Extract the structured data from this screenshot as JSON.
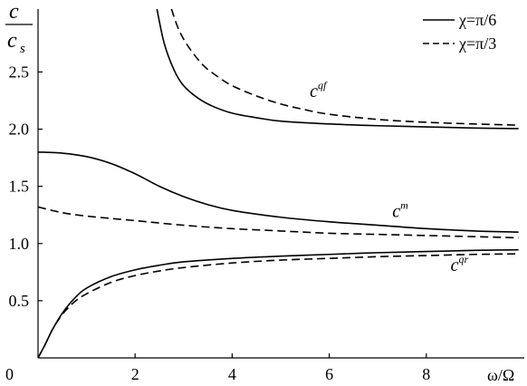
{
  "chart_data": {
    "type": "line",
    "title": "",
    "xlabel": "ω/Ω",
    "ylabel": {
      "numerator": "c",
      "denominator": "c",
      "denominator_subscript": "s"
    },
    "xlim": [
      0,
      10
    ],
    "ylim": [
      0,
      3.05
    ],
    "x_ticks": [
      "2",
      "4",
      "6",
      "8"
    ],
    "y_ticks": [
      "0.5",
      "1.0",
      "1.5",
      "2.0",
      "2.5"
    ],
    "origin_label": "0",
    "legend_position": "top-right",
    "grid": false,
    "series": [
      {
        "name": "χ=π/6",
        "style": "solid",
        "branch": "upper",
        "points": [
          [
            2.45,
            3.05
          ],
          [
            2.6,
            2.75
          ],
          [
            2.8,
            2.52
          ],
          [
            3.0,
            2.38
          ],
          [
            3.3,
            2.27
          ],
          [
            3.6,
            2.2
          ],
          [
            4.0,
            2.14
          ],
          [
            4.5,
            2.1
          ],
          [
            5,
            2.07
          ],
          [
            6,
            2.045
          ],
          [
            7,
            2.03
          ],
          [
            8,
            2.02
          ],
          [
            9,
            2.01
          ],
          [
            9.9,
            2.005
          ]
        ]
      },
      {
        "name": "χ=π/3",
        "style": "dashed",
        "branch": "upper",
        "points": [
          [
            2.75,
            3.05
          ],
          [
            2.9,
            2.87
          ],
          [
            3.1,
            2.72
          ],
          [
            3.4,
            2.56
          ],
          [
            3.7,
            2.46
          ],
          [
            4.0,
            2.38
          ],
          [
            4.5,
            2.29
          ],
          [
            5,
            2.22
          ],
          [
            5.5,
            2.17
          ],
          [
            6,
            2.13
          ],
          [
            7,
            2.085
          ],
          [
            8,
            2.06
          ],
          [
            9,
            2.045
          ],
          [
            9.9,
            2.035
          ]
        ]
      },
      {
        "name": "χ=π/6",
        "style": "solid",
        "branch": "middle",
        "points": [
          [
            0,
            1.8
          ],
          [
            0.5,
            1.79
          ],
          [
            1,
            1.76
          ],
          [
            1.5,
            1.7
          ],
          [
            2,
            1.61
          ],
          [
            2.5,
            1.5
          ],
          [
            3,
            1.41
          ],
          [
            3.5,
            1.34
          ],
          [
            4,
            1.29
          ],
          [
            5,
            1.23
          ],
          [
            6,
            1.19
          ],
          [
            7,
            1.16
          ],
          [
            8,
            1.13
          ],
          [
            9,
            1.11
          ],
          [
            9.9,
            1.1
          ]
        ]
      },
      {
        "name": "χ=π/3",
        "style": "dashed",
        "branch": "middle",
        "points": [
          [
            0,
            1.32
          ],
          [
            0.5,
            1.27
          ],
          [
            1,
            1.24
          ],
          [
            2,
            1.2
          ],
          [
            3,
            1.16
          ],
          [
            4,
            1.13
          ],
          [
            5,
            1.11
          ],
          [
            6,
            1.09
          ],
          [
            7,
            1.08
          ],
          [
            8,
            1.07
          ],
          [
            9,
            1.06
          ],
          [
            9.9,
            1.05
          ]
        ]
      },
      {
        "name": "χ=π/6",
        "style": "solid",
        "branch": "lower",
        "points": [
          [
            0,
            0
          ],
          [
            0.15,
            0.12
          ],
          [
            0.3,
            0.25
          ],
          [
            0.5,
            0.39
          ],
          [
            0.75,
            0.52
          ],
          [
            1,
            0.61
          ],
          [
            1.5,
            0.71
          ],
          [
            2,
            0.77
          ],
          [
            2.5,
            0.81
          ],
          [
            3,
            0.84
          ],
          [
            4,
            0.87
          ],
          [
            5,
            0.89
          ],
          [
            6,
            0.905
          ],
          [
            7,
            0.92
          ],
          [
            8,
            0.93
          ],
          [
            9,
            0.94
          ],
          [
            9.9,
            0.945
          ]
        ]
      },
      {
        "name": "χ=π/3",
        "style": "dashed",
        "branch": "lower",
        "points": [
          [
            0,
            0
          ],
          [
            0.15,
            0.12
          ],
          [
            0.3,
            0.25
          ],
          [
            0.5,
            0.38
          ],
          [
            0.75,
            0.49
          ],
          [
            1,
            0.56
          ],
          [
            1.5,
            0.66
          ],
          [
            2,
            0.72
          ],
          [
            2.5,
            0.76
          ],
          [
            3,
            0.79
          ],
          [
            4,
            0.83
          ],
          [
            5,
            0.855
          ],
          [
            6,
            0.87
          ],
          [
            7,
            0.885
          ],
          [
            8,
            0.895
          ],
          [
            9,
            0.905
          ],
          [
            9.9,
            0.91
          ]
        ]
      }
    ],
    "annotations": [
      {
        "text": "c",
        "superscript": "qf",
        "x": 5.6,
        "y": 2.28
      },
      {
        "text": "c",
        "superscript": "m",
        "x": 7.3,
        "y": 1.23
      },
      {
        "text": "c",
        "superscript": "qr",
        "x": 8.5,
        "y": 0.76
      }
    ]
  }
}
